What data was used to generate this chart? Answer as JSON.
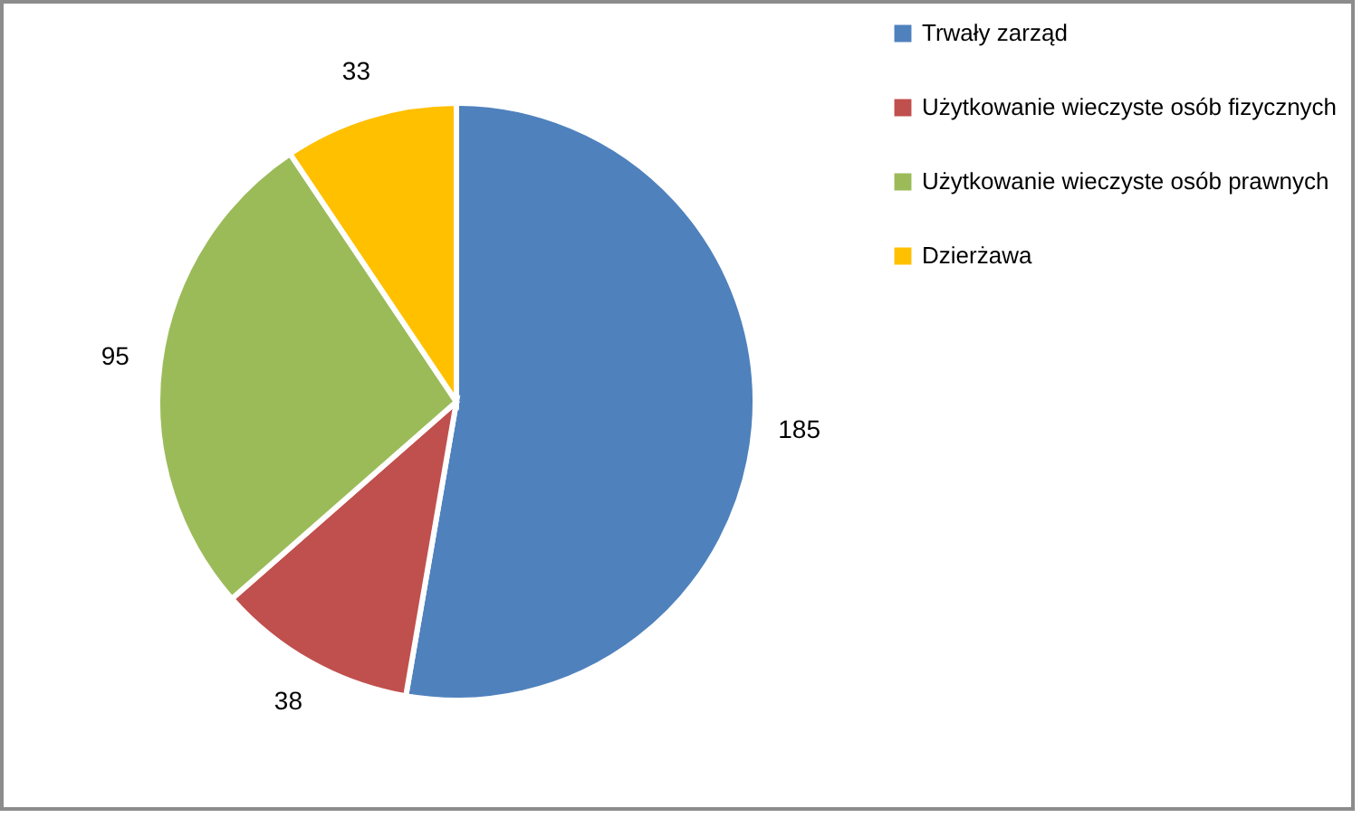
{
  "chart_data": {
    "type": "pie",
    "categories": [
      "Trwały zarząd",
      "Użytkowanie wieczyste osób fizycznych",
      "Użytkowanie wieczyste osób prawnych",
      "Dzierżawa"
    ],
    "values": [
      185,
      38,
      95,
      33
    ],
    "colors": [
      "#4f81bd",
      "#c0504d",
      "#9bbb59",
      "#ffc000"
    ],
    "data_labels": true,
    "legend": "right"
  }
}
